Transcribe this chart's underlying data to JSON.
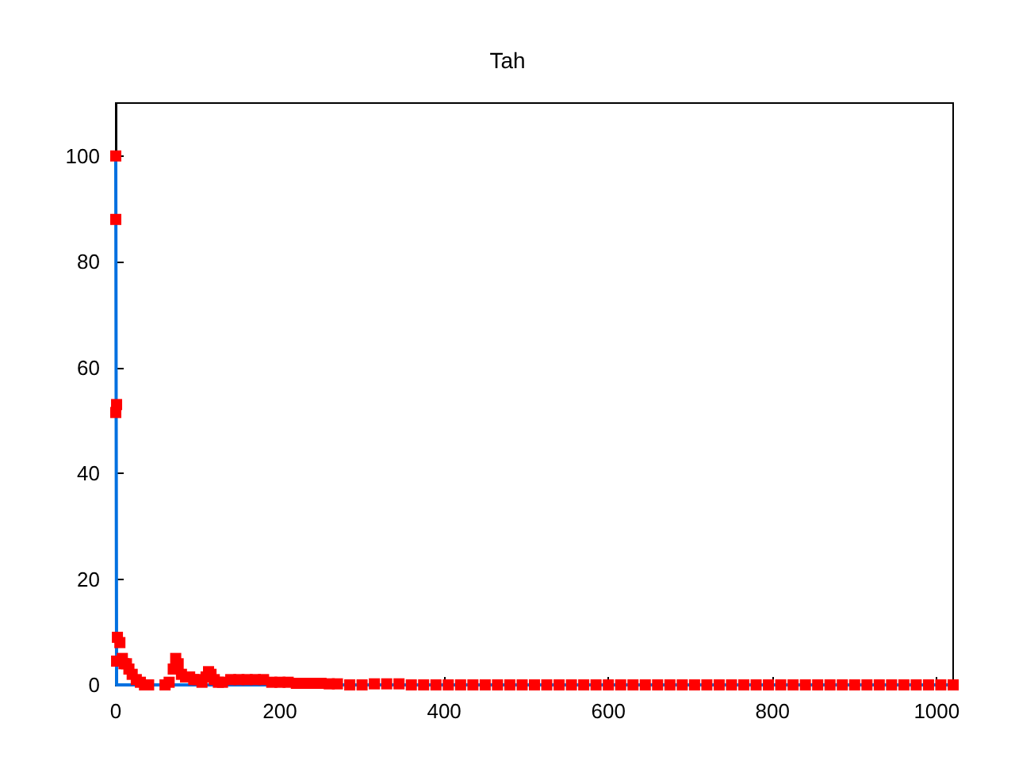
{
  "chart_data": {
    "type": "scatter",
    "title": "Tah",
    "xlim": [
      0,
      1020
    ],
    "xticks": [
      0,
      200,
      400,
      600,
      800,
      1000
    ],
    "ylim": [
      0,
      110
    ],
    "yticks": [
      0,
      20,
      40,
      60,
      80,
      100
    ],
    "grid": false,
    "series": [
      {
        "type": "line",
        "color": "#0070e0",
        "marker": "none",
        "x": [
          0,
          1,
          1020
        ],
        "values": [
          100,
          0,
          0
        ]
      },
      {
        "color": "#ff0000",
        "marker": "square",
        "x": [
          0,
          0,
          1,
          0,
          1,
          2,
          5,
          8,
          10,
          13,
          16,
          20,
          25,
          30,
          35,
          40,
          60,
          65,
          70,
          73,
          76,
          80,
          85,
          90,
          95,
          100,
          105,
          110,
          113,
          116,
          120,
          125,
          130,
          140,
          150,
          160,
          170,
          180,
          190,
          200,
          210,
          220,
          230,
          240,
          250,
          260,
          270,
          285,
          300,
          315,
          330,
          345,
          360,
          375,
          390,
          405,
          420,
          435,
          450,
          465,
          480,
          495,
          510,
          525,
          540,
          555,
          570,
          585,
          600,
          615,
          630,
          645,
          660,
          675,
          690,
          705,
          720,
          735,
          750,
          765,
          780,
          795,
          810,
          825,
          840,
          855,
          870,
          885,
          900,
          915,
          930,
          945,
          960,
          975,
          990,
          1005,
          1020
        ],
        "values": [
          100,
          88,
          53,
          51.5,
          4.5,
          9,
          8,
          5,
          4,
          4,
          3,
          2,
          1,
          0.5,
          0,
          0,
          0,
          0.5,
          3,
          5,
          4,
          2,
          1.5,
          1.5,
          1,
          1,
          0.5,
          1.5,
          2.5,
          2,
          1,
          0.5,
          0.5,
          1,
          1,
          1,
          1,
          1,
          0.5,
          0.5,
          0.5,
          0.3,
          0.3,
          0.3,
          0.3,
          0.2,
          0.2,
          0,
          0,
          0.2,
          0.2,
          0.2,
          0,
          0,
          0,
          0,
          0,
          0,
          0,
          0,
          0,
          0,
          0,
          0,
          0,
          0,
          0,
          0,
          0,
          0,
          0,
          0,
          0,
          0,
          0,
          0,
          0,
          0,
          0,
          0,
          0,
          0,
          0,
          0,
          0,
          0,
          0,
          0,
          0,
          0,
          0,
          0,
          0,
          0,
          0,
          0,
          0
        ]
      }
    ]
  }
}
